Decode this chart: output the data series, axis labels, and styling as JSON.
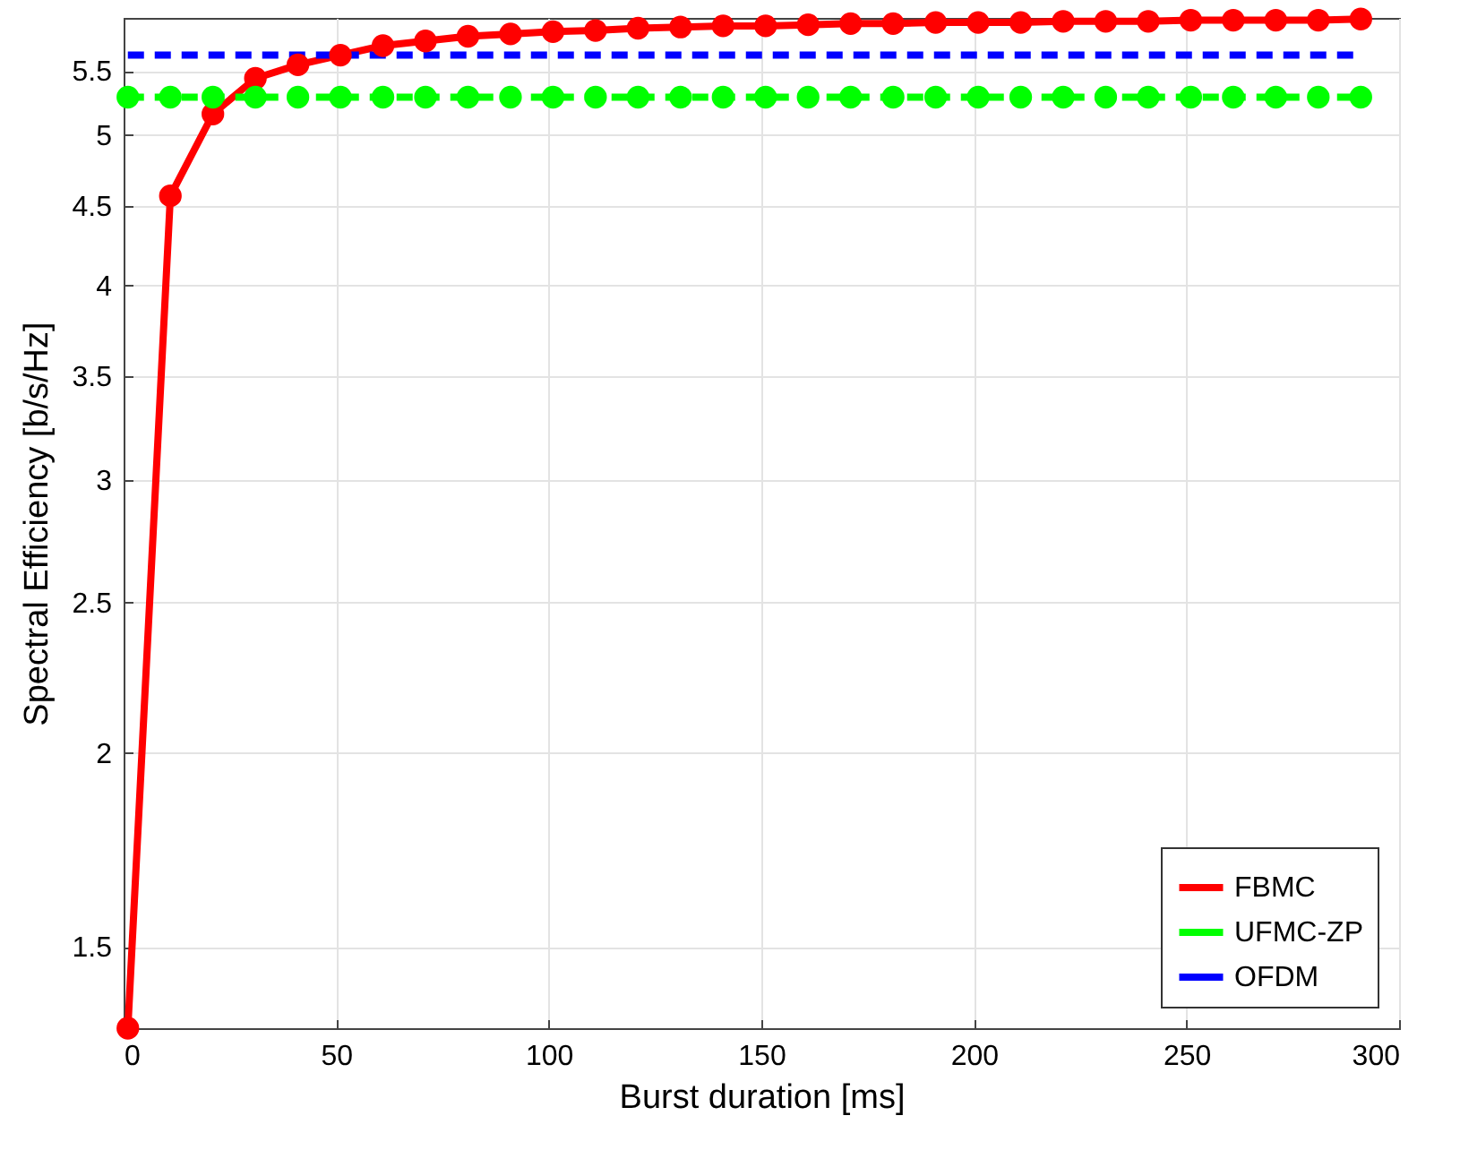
{
  "chart_data": {
    "type": "line",
    "xlabel": "Burst duration [ms]",
    "ylabel": "Spectral Efficiency [b/s/Hz]",
    "x": [
      1,
      11,
      21,
      31,
      41,
      51,
      61,
      71,
      81,
      91,
      101,
      111,
      121,
      131,
      141,
      151,
      161,
      171,
      181,
      191,
      201,
      211,
      221,
      231,
      241,
      251,
      261,
      271,
      281,
      291
    ],
    "series": [
      {
        "name": "FBMC",
        "color": "#ff0000",
        "marker": "circle",
        "line_style": "solid",
        "values": [
          1.33,
          4.57,
          5.16,
          5.44,
          5.55,
          5.63,
          5.71,
          5.75,
          5.79,
          5.81,
          5.83,
          5.84,
          5.86,
          5.87,
          5.88,
          5.88,
          5.89,
          5.9,
          5.9,
          5.91,
          5.91,
          5.91,
          5.92,
          5.92,
          5.92,
          5.93,
          5.93,
          5.93,
          5.93,
          5.94
        ]
      },
      {
        "name": "UFMC-ZP",
        "color": "#00ff00",
        "marker": "circle",
        "line_style": "dashed",
        "values": [
          5.29,
          5.29,
          5.29,
          5.29,
          5.29,
          5.29,
          5.29,
          5.29,
          5.29,
          5.29,
          5.29,
          5.29,
          5.29,
          5.29,
          5.29,
          5.29,
          5.29,
          5.29,
          5.29,
          5.29,
          5.29,
          5.29,
          5.29,
          5.29,
          5.29,
          5.29,
          5.29,
          5.29,
          5.29,
          5.29
        ]
      },
      {
        "name": "OFDM",
        "color": "#0000ff",
        "marker": "none",
        "line_style": "dashed",
        "values": [
          5.63,
          5.63,
          5.63,
          5.63,
          5.63,
          5.63,
          5.63,
          5.63,
          5.63,
          5.63,
          5.63,
          5.63,
          5.63,
          5.63,
          5.63,
          5.63,
          5.63,
          5.63,
          5.63,
          5.63,
          5.63,
          5.63,
          5.63,
          5.63,
          5.63,
          5.63,
          5.63,
          5.63,
          5.63,
          5.63
        ]
      }
    ],
    "xlim": [
      0,
      300
    ],
    "xticks": [
      0,
      50,
      100,
      150,
      200,
      250,
      300
    ],
    "ylim": [
      1.33,
      5.95
    ],
    "yticks": [
      1.5,
      2,
      2.5,
      3,
      3.5,
      4,
      4.5,
      5,
      5.5
    ],
    "log": "y",
    "grid": true,
    "legend": "bottom right"
  }
}
